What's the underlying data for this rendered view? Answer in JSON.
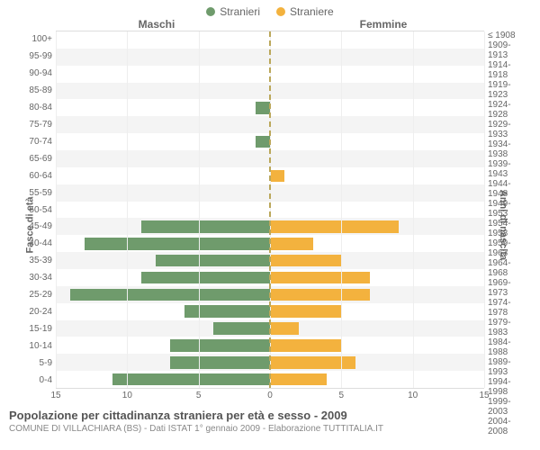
{
  "legend": {
    "male": {
      "label": "Stranieri",
      "color": "#6f9b6c"
    },
    "female": {
      "label": "Straniere",
      "color": "#f3b23e"
    }
  },
  "headers": {
    "left": "Maschi",
    "right": "Femmine"
  },
  "axis_titles": {
    "left": "Fasce di età",
    "right": "Anni di nascita"
  },
  "chart": {
    "type": "population-pyramid",
    "x_max": 15,
    "x_ticks": [
      15,
      10,
      5,
      0,
      5,
      10,
      15
    ],
    "background": "#ffffff",
    "alt_row_bg": "#f4f4f4",
    "grid_color": "#eeeeee",
    "center_line_color": "#bba75a",
    "bar_height_pct": 72,
    "rows": [
      {
        "age": "100+",
        "birth": "≤ 1908",
        "m": 0,
        "f": 0
      },
      {
        "age": "95-99",
        "birth": "1909-1913",
        "m": 0,
        "f": 0
      },
      {
        "age": "90-94",
        "birth": "1914-1918",
        "m": 0,
        "f": 0
      },
      {
        "age": "85-89",
        "birth": "1919-1923",
        "m": 0,
        "f": 0
      },
      {
        "age": "80-84",
        "birth": "1924-1928",
        "m": 1,
        "f": 0
      },
      {
        "age": "75-79",
        "birth": "1929-1933",
        "m": 0,
        "f": 0
      },
      {
        "age": "70-74",
        "birth": "1934-1938",
        "m": 1,
        "f": 0
      },
      {
        "age": "65-69",
        "birth": "1939-1943",
        "m": 0,
        "f": 0
      },
      {
        "age": "60-64",
        "birth": "1944-1948",
        "m": 0,
        "f": 1
      },
      {
        "age": "55-59",
        "birth": "1949-1953",
        "m": 0,
        "f": 0
      },
      {
        "age": "50-54",
        "birth": "1954-1958",
        "m": 0,
        "f": 0
      },
      {
        "age": "45-49",
        "birth": "1959-1963",
        "m": 9,
        "f": 9
      },
      {
        "age": "40-44",
        "birth": "1964-1968",
        "m": 13,
        "f": 3
      },
      {
        "age": "35-39",
        "birth": "1969-1973",
        "m": 8,
        "f": 5
      },
      {
        "age": "30-34",
        "birth": "1974-1978",
        "m": 9,
        "f": 7
      },
      {
        "age": "25-29",
        "birth": "1979-1983",
        "m": 14,
        "f": 7
      },
      {
        "age": "20-24",
        "birth": "1984-1988",
        "m": 6,
        "f": 5
      },
      {
        "age": "15-19",
        "birth": "1989-1993",
        "m": 4,
        "f": 2
      },
      {
        "age": "10-14",
        "birth": "1994-1998",
        "m": 7,
        "f": 5
      },
      {
        "age": "5-9",
        "birth": "1999-2003",
        "m": 7,
        "f": 6
      },
      {
        "age": "0-4",
        "birth": "2004-2008",
        "m": 11,
        "f": 4
      }
    ]
  },
  "footer": {
    "title": "Popolazione per cittadinanza straniera per età e sesso - 2009",
    "subtitle": "COMUNE DI VILLACHIARA (BS) - Dati ISTAT 1° gennaio 2009 - Elaborazione TUTTITALIA.IT"
  }
}
